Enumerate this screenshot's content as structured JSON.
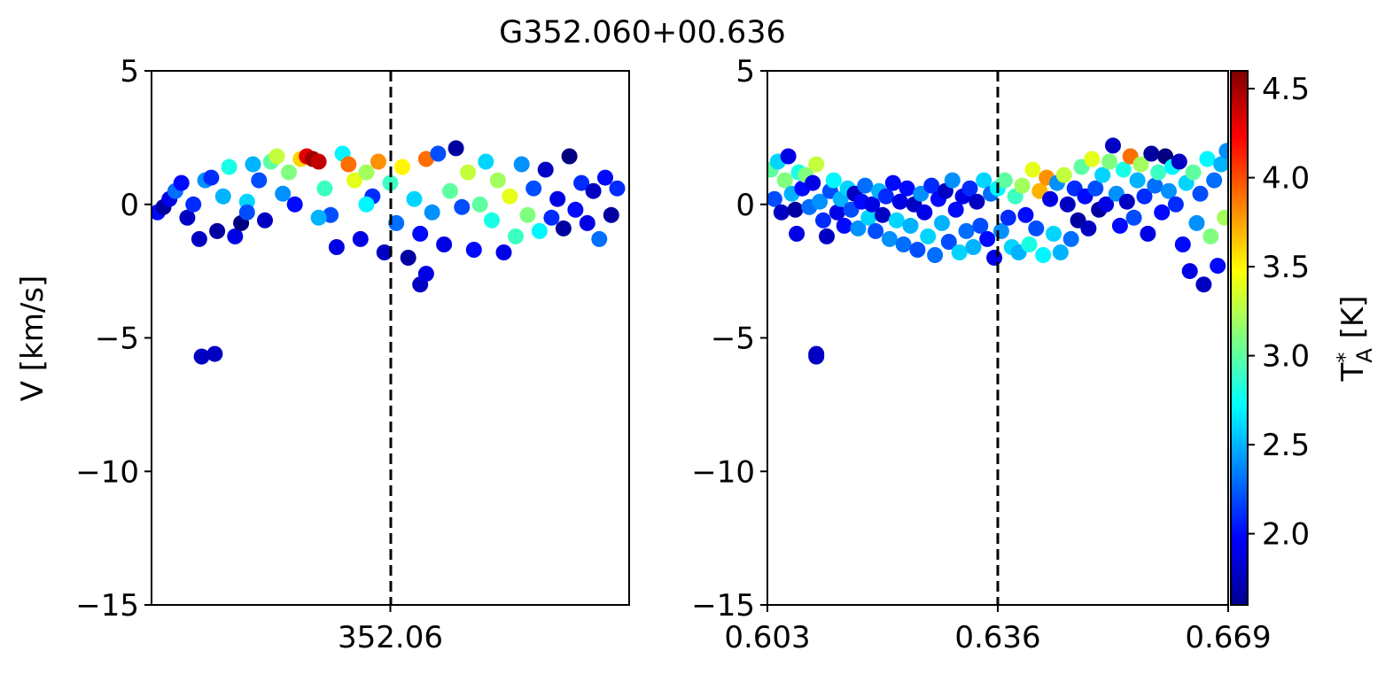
{
  "figure": {
    "title": "G352.060+00.636"
  },
  "chart_data": [
    {
      "type": "scatter",
      "panel": "left",
      "xlabel": "",
      "ylabel": "V [km/s]",
      "xlim": [
        352.04,
        352.08
      ],
      "ylim": [
        -15,
        5
      ],
      "xticks": [
        352.06
      ],
      "xtick_labels": [
        "352.06"
      ],
      "yticks": [
        5,
        0,
        -5,
        -10,
        -15
      ],
      "ytick_labels": [
        "5",
        "0",
        "−5",
        "−10",
        "−15"
      ],
      "reference_line_x": 352.06,
      "reference_line_style": "dashed",
      "colormap": "jet",
      "points": [
        [
          352.0405,
          -0.3,
          2.0
        ],
        [
          352.041,
          -0.1,
          1.7
        ],
        [
          352.0415,
          0.2,
          1.9
        ],
        [
          352.042,
          0.5,
          2.3
        ],
        [
          352.0425,
          0.8,
          2.0
        ],
        [
          352.043,
          -0.5,
          1.8
        ],
        [
          352.0435,
          0.0,
          2.1
        ],
        [
          352.044,
          -1.3,
          1.8
        ],
        [
          352.0445,
          0.9,
          2.4
        ],
        [
          352.045,
          1.0,
          2.1
        ],
        [
          352.0455,
          -1.0,
          1.7
        ],
        [
          352.046,
          0.3,
          2.5
        ],
        [
          352.0465,
          1.4,
          2.8
        ],
        [
          352.047,
          -1.2,
          1.9
        ],
        [
          352.0475,
          -0.7,
          1.6
        ],
        [
          352.048,
          0.1,
          2.6
        ],
        [
          352.0485,
          1.5,
          2.5
        ],
        [
          352.049,
          0.9,
          2.2
        ],
        [
          352.0495,
          -0.6,
          1.8
        ],
        [
          352.05,
          1.6,
          3.0
        ],
        [
          352.0505,
          1.8,
          3.3
        ],
        [
          352.051,
          0.4,
          2.4
        ],
        [
          352.0515,
          1.2,
          3.1
        ],
        [
          352.052,
          0.0,
          2.0
        ],
        [
          352.0525,
          1.7,
          3.6
        ],
        [
          352.053,
          1.8,
          4.3
        ],
        [
          352.0535,
          1.7,
          4.5
        ],
        [
          352.054,
          1.6,
          4.4
        ],
        [
          352.0545,
          0.6,
          2.9
        ],
        [
          352.055,
          -0.4,
          2.2
        ],
        [
          352.0555,
          -1.6,
          1.9
        ],
        [
          352.056,
          1.9,
          2.7
        ],
        [
          352.0565,
          1.5,
          3.9
        ],
        [
          352.057,
          0.9,
          3.4
        ],
        [
          352.0575,
          -1.3,
          1.9
        ],
        [
          352.058,
          1.2,
          3.2
        ],
        [
          352.0585,
          0.3,
          2.1
        ],
        [
          352.059,
          1.6,
          3.8
        ],
        [
          352.0595,
          -1.8,
          1.8
        ],
        [
          352.06,
          0.8,
          2.9
        ],
        [
          352.0605,
          -0.7,
          2.3
        ],
        [
          352.061,
          1.4,
          3.5
        ],
        [
          352.0615,
          -2.0,
          1.7
        ],
        [
          352.062,
          0.2,
          2.6
        ],
        [
          352.0625,
          -1.1,
          2.0
        ],
        [
          352.063,
          1.7,
          3.9
        ],
        [
          352.0635,
          -0.3,
          2.4
        ],
        [
          352.064,
          1.9,
          2.2
        ],
        [
          352.0645,
          -1.5,
          1.9
        ],
        [
          352.065,
          0.5,
          3.0
        ],
        [
          352.0655,
          2.1,
          1.7
        ],
        [
          352.066,
          -0.1,
          2.2
        ],
        [
          352.0665,
          1.2,
          3.3
        ],
        [
          352.067,
          -1.7,
          2.0
        ],
        [
          352.0675,
          0.0,
          3.0
        ],
        [
          352.068,
          1.6,
          2.6
        ],
        [
          352.0685,
          -0.6,
          2.8
        ],
        [
          352.069,
          0.9,
          3.2
        ],
        [
          352.0695,
          -1.8,
          1.9
        ],
        [
          352.07,
          0.3,
          3.4
        ],
        [
          352.0705,
          -1.2,
          2.9
        ],
        [
          352.071,
          1.5,
          2.4
        ],
        [
          352.0715,
          -0.4,
          3.1
        ],
        [
          352.072,
          0.6,
          2.2
        ],
        [
          352.0725,
          -1.0,
          2.7
        ],
        [
          352.073,
          1.3,
          1.8
        ],
        [
          352.0735,
          -0.5,
          2.1
        ],
        [
          352.074,
          0.2,
          1.9
        ],
        [
          352.0745,
          -0.9,
          1.7
        ],
        [
          352.075,
          1.8,
          1.6
        ],
        [
          352.0755,
          -0.2,
          2.0
        ],
        [
          352.076,
          0.8,
          2.1
        ],
        [
          352.0765,
          -0.7,
          1.9
        ],
        [
          352.077,
          0.5,
          1.8
        ],
        [
          352.0775,
          -1.3,
          2.3
        ],
        [
          352.078,
          1.0,
          2.0
        ],
        [
          352.0785,
          -0.4,
          1.7
        ],
        [
          352.079,
          0.6,
          2.1
        ],
        [
          352.0442,
          -5.7,
          1.8
        ],
        [
          352.0453,
          -5.6,
          1.8
        ],
        [
          352.0625,
          -3.0,
          1.8
        ],
        [
          352.063,
          -2.6,
          1.9
        ],
        [
          352.048,
          -0.3,
          2.2
        ],
        [
          352.054,
          -0.5,
          2.5
        ],
        [
          352.058,
          0.0,
          2.7
        ]
      ]
    },
    {
      "type": "scatter",
      "panel": "right",
      "xlabel": "",
      "ylabel": "",
      "xlim": [
        0.603,
        0.669
      ],
      "ylim": [
        -15,
        5
      ],
      "xticks": [
        0.603,
        0.636,
        0.669
      ],
      "xtick_labels": [
        "0.603",
        "0.636",
        "0.669"
      ],
      "yticks": [
        5,
        0,
        -5,
        -10,
        -15
      ],
      "ytick_labels": [
        "5",
        "0",
        "−5",
        "−10",
        "−15"
      ],
      "reference_line_x": 0.636,
      "reference_line_style": "dashed",
      "colormap": "jet",
      "points": [
        [
          0.6035,
          1.3,
          3.0
        ],
        [
          0.604,
          0.2,
          2.2
        ],
        [
          0.6045,
          1.6,
          2.6
        ],
        [
          0.605,
          -0.3,
          1.8
        ],
        [
          0.6055,
          0.9,
          3.1
        ],
        [
          0.606,
          1.8,
          1.9
        ],
        [
          0.6065,
          0.4,
          2.5
        ],
        [
          0.607,
          -0.2,
          1.7
        ],
        [
          0.6075,
          1.2,
          2.8
        ],
        [
          0.608,
          0.6,
          2.0
        ],
        [
          0.6085,
          1.1,
          3.1
        ],
        [
          0.609,
          -0.1,
          2.3
        ],
        [
          0.6095,
          0.8,
          1.9
        ],
        [
          0.61,
          1.5,
          3.3
        ],
        [
          0.6105,
          0.1,
          2.4
        ],
        [
          0.611,
          -0.6,
          2.1
        ],
        [
          0.6115,
          -1.2,
          1.8
        ],
        [
          0.612,
          0.5,
          2.2
        ],
        [
          0.6125,
          0.9,
          2.7
        ],
        [
          0.613,
          -0.3,
          1.9
        ],
        [
          0.6135,
          0.2,
          2.5
        ],
        [
          0.614,
          -0.8,
          2.0
        ],
        [
          0.6145,
          0.6,
          2.6
        ],
        [
          0.615,
          -0.2,
          2.2
        ],
        [
          0.6155,
          0.4,
          1.8
        ],
        [
          0.616,
          -0.9,
          2.4
        ],
        [
          0.6165,
          0.1,
          2.0
        ],
        [
          0.617,
          0.7,
          2.3
        ],
        [
          0.6175,
          -0.5,
          2.6
        ],
        [
          0.618,
          0.0,
          1.9
        ],
        [
          0.6185,
          -1.0,
          2.2
        ],
        [
          0.619,
          0.5,
          2.5
        ],
        [
          0.6195,
          -0.4,
          1.8
        ],
        [
          0.62,
          0.3,
          2.1
        ],
        [
          0.6205,
          -1.3,
          2.4
        ],
        [
          0.621,
          0.8,
          2.0
        ],
        [
          0.6215,
          -0.6,
          2.6
        ],
        [
          0.622,
          0.1,
          1.9
        ],
        [
          0.6225,
          -1.5,
          2.3
        ],
        [
          0.623,
          0.6,
          2.0
        ],
        [
          0.6235,
          -0.8,
          2.5
        ],
        [
          0.624,
          0.0,
          1.8
        ],
        [
          0.6245,
          -1.7,
          2.2
        ],
        [
          0.625,
          0.4,
          2.4
        ],
        [
          0.6255,
          -0.3,
          1.9
        ],
        [
          0.626,
          -1.2,
          2.6
        ],
        [
          0.6265,
          0.7,
          2.1
        ],
        [
          0.627,
          -1.9,
          2.3
        ],
        [
          0.6275,
          0.2,
          2.0
        ],
        [
          0.628,
          -0.7,
          2.5
        ],
        [
          0.6285,
          0.5,
          1.8
        ],
        [
          0.629,
          -1.4,
          2.2
        ],
        [
          0.6295,
          0.9,
          2.4
        ],
        [
          0.63,
          -0.2,
          2.0
        ],
        [
          0.6305,
          -1.8,
          2.6
        ],
        [
          0.631,
          0.3,
          1.9
        ],
        [
          0.6315,
          -1.0,
          2.3
        ],
        [
          0.632,
          0.6,
          2.1
        ],
        [
          0.6325,
          -1.6,
          2.5
        ],
        [
          0.633,
          0.1,
          1.8
        ],
        [
          0.6335,
          -0.8,
          2.2
        ],
        [
          0.634,
          0.9,
          2.6
        ],
        [
          0.6345,
          -1.3,
          2.0
        ],
        [
          0.635,
          0.4,
          2.3
        ],
        [
          0.6355,
          -2.0,
          1.9
        ],
        [
          0.636,
          0.6,
          2.7
        ],
        [
          0.6365,
          -1.0,
          2.4
        ],
        [
          0.637,
          0.9,
          3.0
        ],
        [
          0.6375,
          -0.5,
          2.1
        ],
        [
          0.638,
          -1.6,
          2.6
        ],
        [
          0.6385,
          0.3,
          2.9
        ],
        [
          0.639,
          -1.8,
          2.5
        ],
        [
          0.6395,
          0.7,
          3.2
        ],
        [
          0.64,
          -0.4,
          2.0
        ],
        [
          0.6405,
          -1.5,
          2.8
        ],
        [
          0.641,
          1.3,
          3.4
        ],
        [
          0.6415,
          -0.9,
          2.2
        ],
        [
          0.642,
          0.5,
          3.7
        ],
        [
          0.6425,
          -1.9,
          2.7
        ],
        [
          0.643,
          1.0,
          3.8
        ],
        [
          0.6435,
          0.2,
          1.9
        ],
        [
          0.644,
          -1.1,
          2.6
        ],
        [
          0.6445,
          0.8,
          2.4
        ],
        [
          0.645,
          -1.8,
          2.5
        ],
        [
          0.6455,
          1.1,
          3.3
        ],
        [
          0.646,
          0.0,
          1.8
        ],
        [
          0.6465,
          -1.3,
          2.3
        ],
        [
          0.647,
          0.6,
          2.1
        ],
        [
          0.6475,
          -0.6,
          1.7
        ],
        [
          0.648,
          1.4,
          3.0
        ],
        [
          0.6485,
          0.3,
          2.0
        ],
        [
          0.649,
          -0.9,
          1.8
        ],
        [
          0.6495,
          1.7,
          3.4
        ],
        [
          0.65,
          0.6,
          2.2
        ],
        [
          0.6505,
          -0.2,
          1.7
        ],
        [
          0.651,
          1.1,
          2.6
        ],
        [
          0.6515,
          0.0,
          1.9
        ],
        [
          0.652,
          1.6,
          3.1
        ],
        [
          0.6525,
          2.2,
          1.8
        ],
        [
          0.653,
          0.4,
          2.4
        ],
        [
          0.6535,
          -0.8,
          2.0
        ],
        [
          0.654,
          1.3,
          2.8
        ],
        [
          0.6545,
          0.1,
          1.8
        ],
        [
          0.655,
          1.8,
          3.9
        ],
        [
          0.6555,
          -0.5,
          2.2
        ],
        [
          0.656,
          0.9,
          2.5
        ],
        [
          0.6565,
          1.5,
          3.2
        ],
        [
          0.657,
          0.3,
          2.1
        ],
        [
          0.6575,
          -1.1,
          1.9
        ],
        [
          0.658,
          1.9,
          1.7
        ],
        [
          0.6585,
          0.7,
          2.3
        ],
        [
          0.659,
          1.2,
          2.9
        ],
        [
          0.6595,
          -0.3,
          2.0
        ],
        [
          0.66,
          1.8,
          1.6
        ],
        [
          0.6605,
          0.5,
          2.4
        ],
        [
          0.661,
          1.4,
          2.7
        ],
        [
          0.6615,
          0.0,
          2.1
        ],
        [
          0.662,
          1.6,
          1.8
        ],
        [
          0.6625,
          -1.5,
          2.0
        ],
        [
          0.663,
          0.8,
          2.6
        ],
        [
          0.6635,
          -2.5,
          1.9
        ],
        [
          0.664,
          1.2,
          3.0
        ],
        [
          0.6645,
          -0.7,
          2.4
        ],
        [
          0.665,
          0.4,
          2.2
        ],
        [
          0.6655,
          -3.0,
          1.8
        ],
        [
          0.666,
          1.7,
          2.7
        ],
        [
          0.6665,
          -1.2,
          3.1
        ],
        [
          0.667,
          0.9,
          2.3
        ],
        [
          0.6675,
          -2.3,
          2.0
        ],
        [
          0.668,
          1.5,
          2.5
        ],
        [
          0.6685,
          -0.5,
          3.2
        ],
        [
          0.6688,
          2.0,
          2.4
        ],
        [
          0.61,
          -5.6,
          1.8
        ],
        [
          0.61,
          -5.7,
          1.8
        ],
        [
          0.6072,
          -1.1,
          1.9
        ]
      ],
      "colorbar": {
        "label": "T*_A [K]",
        "min": 1.6,
        "max": 4.6,
        "ticks": [
          2.0,
          2.5,
          3.0,
          3.5,
          4.0,
          4.5
        ],
        "tick_labels": [
          "2.0",
          "2.5",
          "3.0",
          "3.5",
          "4.0",
          "4.5"
        ]
      }
    }
  ]
}
